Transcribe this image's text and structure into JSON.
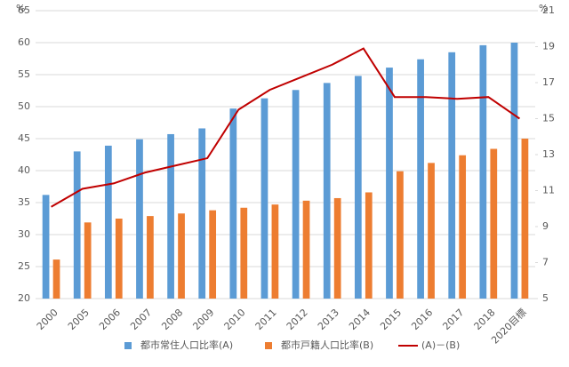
{
  "chart_data": {
    "type": "bar-line",
    "y_unit": "%",
    "y2_unit": "%",
    "categories": [
      "2000",
      "2005",
      "2006",
      "2007",
      "2008",
      "2009",
      "2010",
      "2011",
      "2012",
      "2013",
      "2014",
      "2015",
      "2016",
      "2017",
      "2018",
      "2020目標"
    ],
    "series": [
      {
        "name": "都市常住人口比率(A)",
        "type": "bar",
        "color": "#5b9bd5",
        "values": [
          36.2,
          43.0,
          43.9,
          44.9,
          45.7,
          46.6,
          49.7,
          51.3,
          52.6,
          53.7,
          54.8,
          56.1,
          57.4,
          58.5,
          59.6,
          60.0
        ]
      },
      {
        "name": "都市戸籍人口比率(B)",
        "type": "bar",
        "color": "#ed7d31",
        "values": [
          26.1,
          31.9,
          32.5,
          32.9,
          33.3,
          33.8,
          34.2,
          34.7,
          35.3,
          35.7,
          36.6,
          39.9,
          41.2,
          42.4,
          43.4,
          45.0
        ]
      },
      {
        "name": "(A)－(B)",
        "type": "line",
        "axis": "y2",
        "color": "#c00000",
        "values": [
          10.1,
          11.1,
          11.4,
          12.0,
          12.4,
          12.8,
          15.5,
          16.6,
          17.3,
          18.0,
          18.9,
          16.2,
          16.2,
          16.1,
          16.2,
          15.0
        ]
      }
    ],
    "ylim": [
      20,
      65
    ],
    "yticks": [
      20,
      25,
      30,
      35,
      40,
      45,
      50,
      55,
      60,
      65
    ],
    "y2lim": [
      5,
      21
    ],
    "y2ticks": [
      5,
      7,
      9,
      11,
      13,
      15,
      17,
      19,
      21
    ],
    "grid": true,
    "legend": "bottom"
  }
}
